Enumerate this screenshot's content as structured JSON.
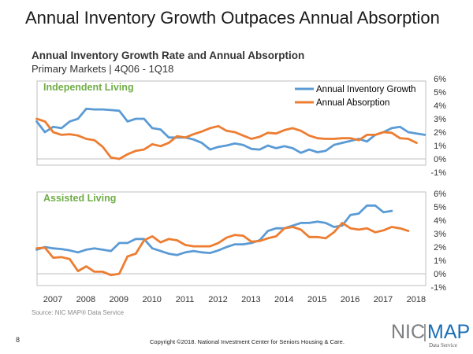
{
  "slide": {
    "title": "Annual Inventory Growth Outpaces Annual Absorption",
    "source": "Source: NIC MAP® Data Service",
    "page_number": "8",
    "copyright": "Copyright ©2018. National Investment Center for Seniors Housing & Care."
  },
  "logo": {
    "nic": "NIC",
    "map": "MAP",
    "subtext": "Data Service"
  },
  "colors": {
    "inventory_growth": "#5b9bd5",
    "absorption": "#ed7d31",
    "panel_label": "#70ad47",
    "panel_border": "#bfbfbf"
  },
  "chart_data": {
    "type": "line",
    "title": "Annual Inventory Growth Rate and Annual Absorption",
    "subtitle": "Primary Markets | 4Q06 - 1Q18",
    "x": {
      "start_quarter": "4Q06",
      "end_quarter": "1Q18",
      "tick_labels": [
        "2007",
        "2008",
        "2009",
        "2010",
        "2011",
        "2012",
        "2013",
        "2014",
        "2015",
        "2016",
        "2017",
        "2018"
      ]
    },
    "ylim": [
      -1,
      6
    ],
    "y_ticks": [
      "-1%",
      "0%",
      "1%",
      "2%",
      "3%",
      "4%",
      "5%",
      "6%"
    ],
    "legend": {
      "position": "top-right",
      "entries": [
        "Annual Inventory Growth",
        "Annual Absorption"
      ]
    },
    "panels": [
      {
        "label": "Independent Living",
        "series": [
          {
            "name": "Annual Inventory Growth",
            "values": [
              2.8,
              2.0,
              2.4,
              2.3,
              2.8,
              3.0,
              3.75,
              3.7,
              3.7,
              3.65,
              3.6,
              2.8,
              3.0,
              3.0,
              2.3,
              2.2,
              1.6,
              1.6,
              1.6,
              1.45,
              1.2,
              0.7,
              0.9,
              1.0,
              1.15,
              1.05,
              0.75,
              0.7,
              1.0,
              0.8,
              0.95,
              0.8,
              0.45,
              0.7,
              0.5,
              0.6,
              1.05,
              1.2,
              1.35,
              1.5,
              1.3,
              1.8,
              2.0,
              2.3,
              2.4,
              2.0,
              1.9,
              1.8
            ]
          },
          {
            "name": "Annual Absorption",
            "values": [
              3.0,
              2.8,
              2.0,
              1.8,
              1.85,
              1.75,
              1.5,
              1.4,
              0.9,
              0.1,
              0.0,
              0.35,
              0.6,
              0.7,
              1.1,
              0.95,
              1.2,
              1.7,
              1.6,
              1.85,
              2.05,
              2.3,
              2.45,
              2.1,
              2.0,
              1.75,
              1.5,
              1.65,
              1.95,
              1.9,
              2.15,
              2.3,
              2.1,
              1.75,
              1.55,
              1.5,
              1.5,
              1.55,
              1.55,
              1.4,
              1.8,
              1.8,
              2.0,
              1.95,
              1.55,
              1.5,
              1.2
            ]
          }
        ]
      },
      {
        "label": "Assisted Living",
        "series": [
          {
            "name": "Annual Inventory Growth",
            "values": [
              1.8,
              2.0,
              1.9,
              1.85,
              1.75,
              1.6,
              1.8,
              1.9,
              1.8,
              1.7,
              2.3,
              2.3,
              2.6,
              2.6,
              1.9,
              1.7,
              1.5,
              1.4,
              1.6,
              1.7,
              1.6,
              1.55,
              1.75,
              2.0,
              2.2,
              2.2,
              2.3,
              2.5,
              3.2,
              3.4,
              3.4,
              3.6,
              3.8,
              3.8,
              3.9,
              3.8,
              3.5,
              3.6,
              4.4,
              4.5,
              5.1,
              5.1,
              4.6,
              4.7
            ]
          },
          {
            "name": "Annual Absorption",
            "values": [
              1.9,
              1.95,
              1.2,
              1.25,
              1.1,
              0.2,
              0.55,
              0.15,
              0.15,
              -0.1,
              0.0,
              1.3,
              1.5,
              2.5,
              2.8,
              2.35,
              2.6,
              2.5,
              2.15,
              2.05,
              2.05,
              2.05,
              2.3,
              2.7,
              2.9,
              2.85,
              2.4,
              2.45,
              2.65,
              2.8,
              3.4,
              3.5,
              3.3,
              2.75,
              2.75,
              2.65,
              3.1,
              3.8,
              3.4,
              3.3,
              3.4,
              3.1,
              3.25,
              3.5,
              3.4,
              3.2
            ]
          }
        ]
      }
    ]
  }
}
